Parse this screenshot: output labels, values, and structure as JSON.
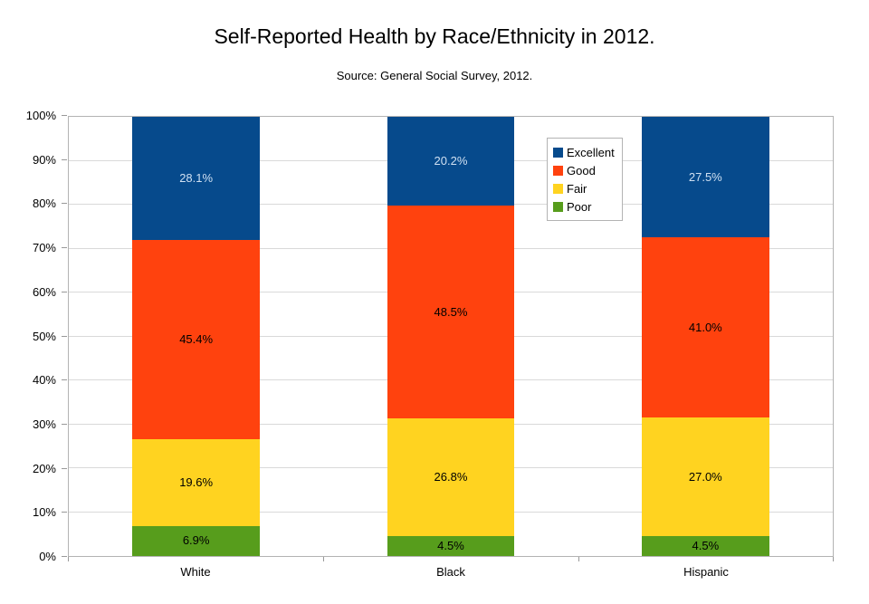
{
  "title": "Self-Reported Health by Race/Ethnicity in 2012.",
  "subtitle": "Source: General Social Survey, 2012.",
  "chart_data": {
    "type": "bar",
    "stacked": true,
    "stack_unit": "percent",
    "title": "Self-Reported Health by Race/Ethnicity in 2012.",
    "subtitle": "Source: General Social Survey, 2012.",
    "categories": [
      "White",
      "Black",
      "Hispanic"
    ],
    "series": [
      {
        "name": "Excellent",
        "color": "#064a8c",
        "label_color": "#cfe0f2",
        "values": [
          28.1,
          20.2,
          27.5
        ],
        "labels": [
          "28.1%",
          "20.2%",
          "27.5%"
        ]
      },
      {
        "name": "Good",
        "color": "#ff420e",
        "label_color": "#000000",
        "values": [
          45.4,
          48.5,
          41.0
        ],
        "labels": [
          "45.4%",
          "48.5%",
          "41.0%"
        ]
      },
      {
        "name": "Fair",
        "color": "#ffd320",
        "label_color": "#000000",
        "values": [
          19.6,
          26.8,
          27.0
        ],
        "labels": [
          "19.6%",
          "26.8%",
          "27.0%"
        ]
      },
      {
        "name": "Poor",
        "color": "#579d1c",
        "label_color": "#000000",
        "values": [
          6.9,
          4.5,
          4.5
        ],
        "labels": [
          "6.9%",
          "4.5%",
          "4.5%"
        ]
      }
    ],
    "y_axis": {
      "min": 0,
      "max": 100,
      "ticks": [
        "0%",
        "10%",
        "20%",
        "30%",
        "40%",
        "50%",
        "60%",
        "70%",
        "80%",
        "90%",
        "100%"
      ]
    },
    "grid": true,
    "legend": {
      "position": "inside-top-right",
      "entries": [
        "Excellent",
        "Good",
        "Fair",
        "Poor"
      ]
    }
  },
  "colors": {
    "background": "#ffffff",
    "plot_border": "#b3b3b3",
    "gridline": "#d9d9d9",
    "tick": "#999999",
    "text": "#000000"
  }
}
